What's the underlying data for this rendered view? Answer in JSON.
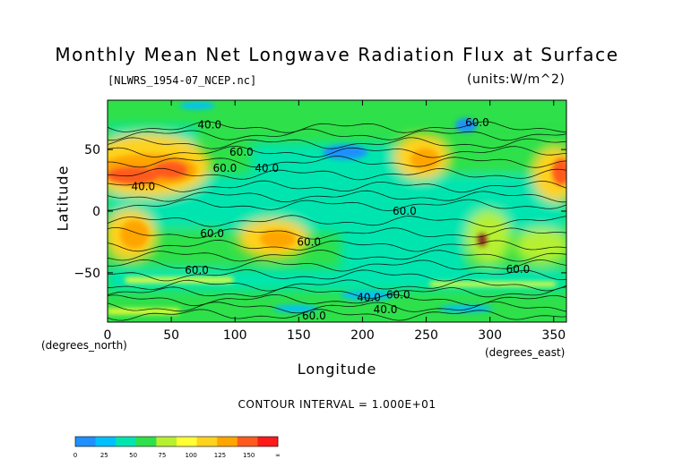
{
  "chart_data": {
    "type": "heatmap",
    "title": "Monthly Mean Net Longwave Radiation Flux at Surface",
    "file_label": "[NLWRS_1954-07_NCEP.nc]",
    "units_label": "(units:W/m^2)",
    "xlabel": "Longitude",
    "ylabel": "Latitude",
    "x_unit_label": "(degrees_east)",
    "y_unit_label": "(degrees_north)",
    "xlim": [
      0,
      360
    ],
    "ylim": [
      -90,
      90
    ],
    "x_ticks": [
      0,
      50,
      100,
      150,
      200,
      250,
      300,
      350
    ],
    "y_ticks": [
      50,
      0,
      -50
    ],
    "contour_interval_label": "CONTOUR INTERVAL = 1.000E+01",
    "contour_labels": [
      {
        "text": "40.0",
        "lon": 80,
        "lat": 70
      },
      {
        "text": "60.0",
        "lon": 105,
        "lat": 48
      },
      {
        "text": "60.0",
        "lon": 92,
        "lat": 35
      },
      {
        "text": "40.0",
        "lon": 125,
        "lat": 35
      },
      {
        "text": "40.0",
        "lon": 28,
        "lat": 20
      },
      {
        "text": "60.0",
        "lon": 82,
        "lat": -18
      },
      {
        "text": "60.0",
        "lon": 233,
        "lat": 0
      },
      {
        "text": "60.0",
        "lon": 158,
        "lat": -25
      },
      {
        "text": "60.0",
        "lon": 70,
        "lat": -48
      },
      {
        "text": "60.0",
        "lon": 322,
        "lat": -47
      },
      {
        "text": "40.0",
        "lon": 205,
        "lat": -70
      },
      {
        "text": "60.0",
        "lon": 228,
        "lat": -68
      },
      {
        "text": "40.0",
        "lon": 218,
        "lat": -80
      },
      {
        "text": "60.0",
        "lon": 162,
        "lat": -85
      },
      {
        "text": "60.0",
        "lon": 290,
        "lat": 72
      }
    ],
    "colorbar": {
      "ticks": [
        "0",
        "25",
        "50",
        "75",
        "100",
        "125",
        "150",
        "∞"
      ],
      "colors": [
        "#1e90ff",
        "#00bfff",
        "#00e5b0",
        "#2ee04a",
        "#b6f030",
        "#ffff33",
        "#ffd21e",
        "#ffa500",
        "#ff5a1e",
        "#ff1a1a"
      ]
    }
  }
}
